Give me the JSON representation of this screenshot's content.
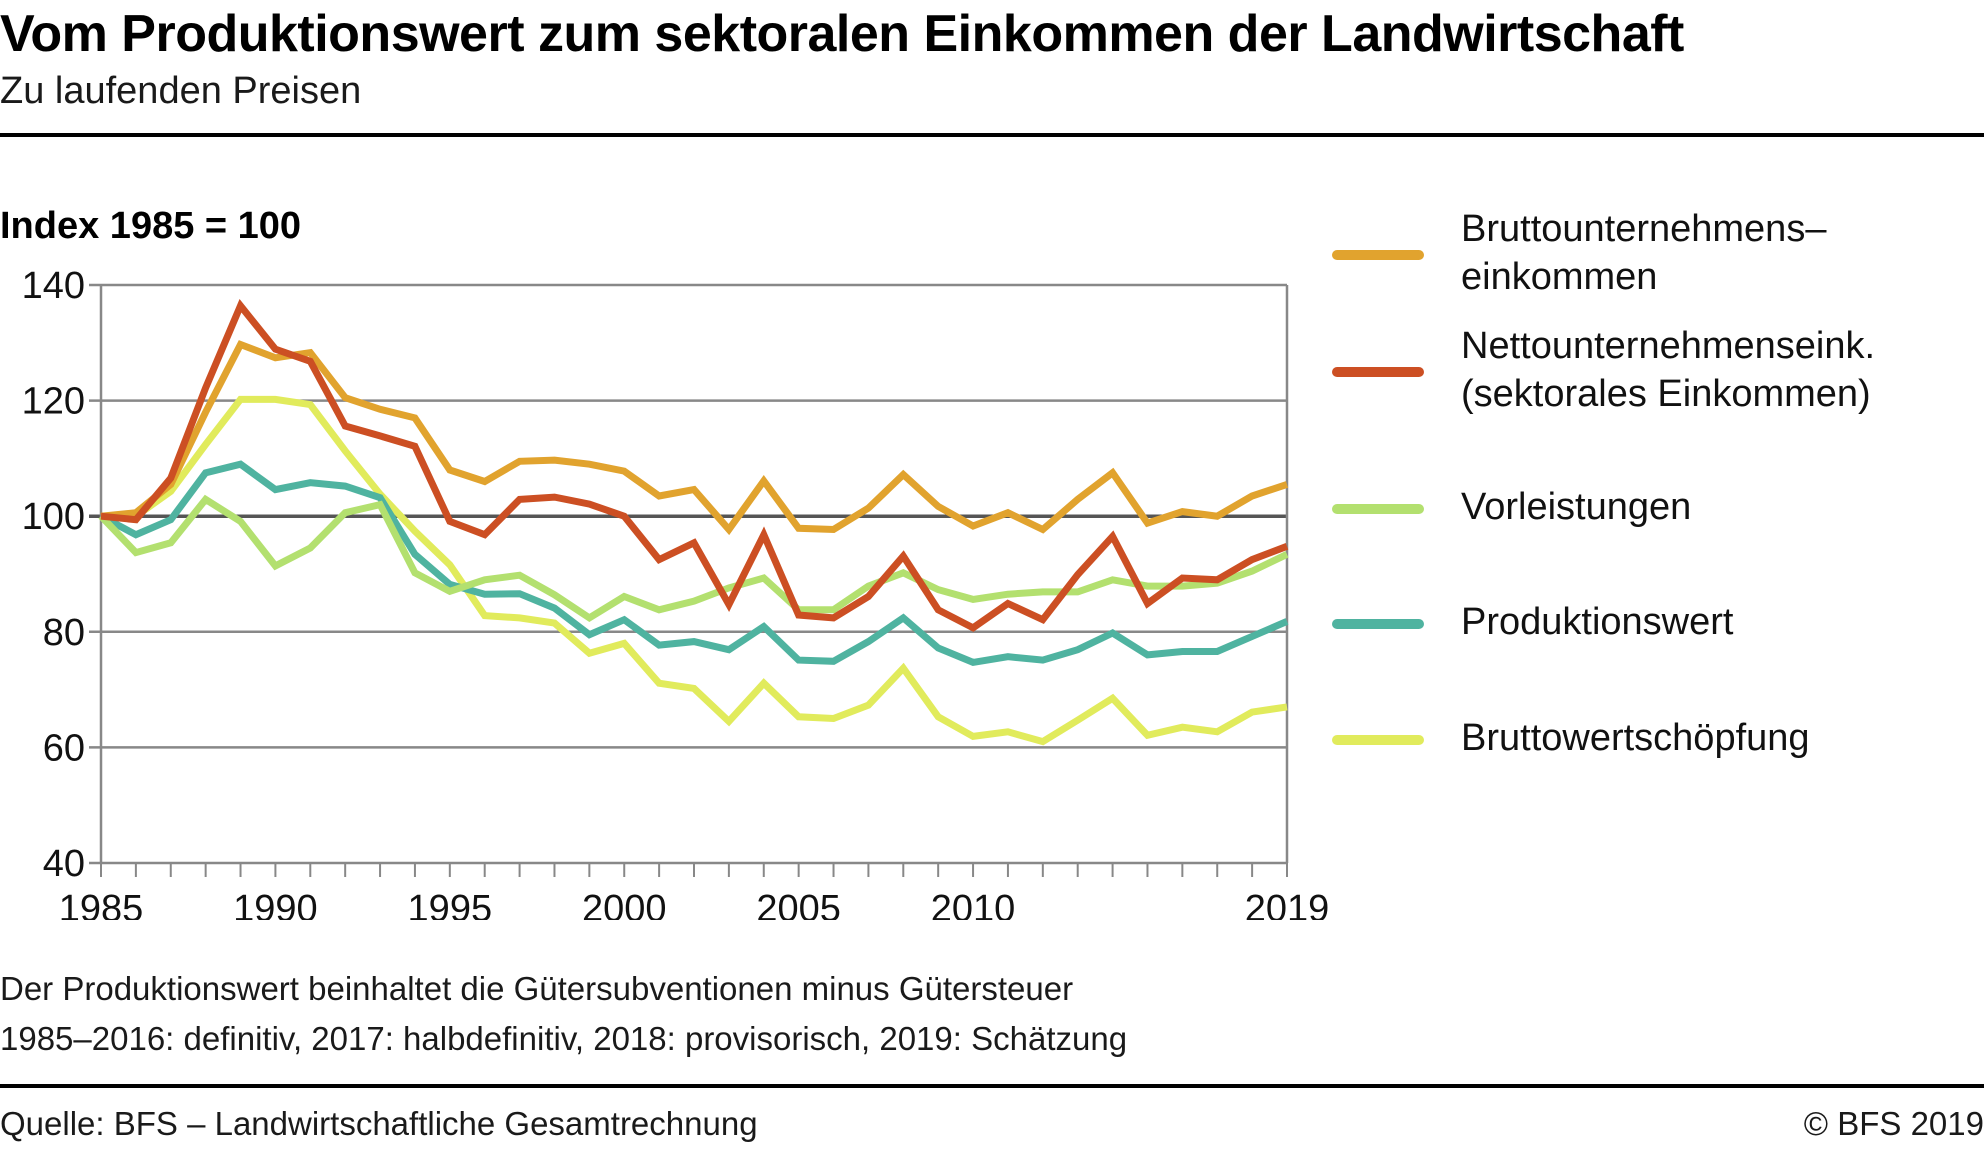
{
  "header": {
    "title": "Vom Produktionswert zum sektoralen Einkommen der Landwirtschaft",
    "subtitle": "Zu laufenden Preisen"
  },
  "footer": {
    "notes": [
      "Der Produktionswert beinhaltet die Gütersubventionen minus Gütersteuer",
      "1985–2016: definitiv, 2017: halbdefinitiv, 2018: provisorisch, 2019: Schätzung"
    ],
    "source": "Quelle: BFS – Landwirtschaftliche Gesamtrechnung",
    "copyright": "© BFS 2019"
  },
  "chart_data": {
    "type": "line",
    "title": "Vom Produktionswert zum sektoralen Einkommen der Landwirtschaft",
    "subtitle": "Zu laufenden Preisen",
    "ylabel": "Index 1985 = 100",
    "xlabel": "",
    "ylim": [
      40,
      140
    ],
    "xlim": [
      1985,
      2019
    ],
    "yticks": [
      40,
      60,
      80,
      100,
      120,
      140
    ],
    "ytick_labels": [
      "40",
      "60",
      "80",
      "100",
      "120",
      "140"
    ],
    "xtick_labels": [
      {
        "year": 1985,
        "label": "1985"
      },
      {
        "year": 1990,
        "label": "1990"
      },
      {
        "year": 1995,
        "label": "1995"
      },
      {
        "year": 2000,
        "label": "2000"
      },
      {
        "year": 2005,
        "label": "2005"
      },
      {
        "year": 2010,
        "label": "2010"
      },
      {
        "year": 2019,
        "label": "2019"
      }
    ],
    "grid": "horizontal",
    "reference_line": 100,
    "legend_position": "right",
    "x": [
      1985,
      1986,
      1987,
      1988,
      1989,
      1990,
      1991,
      1992,
      1993,
      1994,
      1995,
      1996,
      1997,
      1998,
      1999,
      2000,
      2001,
      2002,
      2003,
      2004,
      2005,
      2006,
      2007,
      2008,
      2009,
      2010,
      2011,
      2012,
      2013,
      2014,
      2015,
      2016,
      2017,
      2018,
      2019
    ],
    "series": [
      {
        "name": "Bruttounternehmenseinkommen",
        "legend_lines": [
          "Bruttounternehmens–",
          "einkommen"
        ],
        "color": "#E1A32E",
        "values": [
          100,
          100.6,
          105.5,
          118,
          129.7,
          127.4,
          128.3,
          120.5,
          118.5,
          117,
          108,
          106,
          109.5,
          109.7,
          109,
          107.8,
          103.5,
          104.6,
          97.7,
          106.1,
          97.9,
          97.7,
          101.4,
          107.2,
          101.7,
          98.3,
          100.6,
          97.7,
          102.9,
          107.5,
          98.8,
          100.8,
          100,
          103.5,
          105.5
        ]
      },
      {
        "name": "Nettounternehmenseink. (sektorales Einkommen)",
        "legend_lines": [
          "Nettounternehmenseink.",
          "(sektorales Einkommen)"
        ],
        "color": "#CC4F23",
        "values": [
          100,
          99.4,
          106.6,
          122.2,
          136.4,
          128.9,
          126.8,
          115.6,
          113.9,
          112.1,
          99.1,
          96.8,
          102.9,
          103.3,
          102.1,
          100,
          92.5,
          95.4,
          84.7,
          96.8,
          82.9,
          82.4,
          86.1,
          93.1,
          83.8,
          80.7,
          84.9,
          82.1,
          89.9,
          96.5,
          84.9,
          89.3,
          89,
          92.5,
          94.8
        ]
      },
      {
        "name": "Vorleistungen",
        "legend_lines": [
          "Vorleistungen"
        ],
        "color": "#B3E06F",
        "values": [
          100,
          93.7,
          95.4,
          102.9,
          99.1,
          91.4,
          94.5,
          100.6,
          102,
          90.2,
          87,
          89,
          89.8,
          86.4,
          82.4,
          86.1,
          83.8,
          85.3,
          87.6,
          89.3,
          83.8,
          83.8,
          87.9,
          90.2,
          87.3,
          85.6,
          86.5,
          86.9,
          86.9,
          89,
          87.9,
          87.9,
          88.4,
          90.5,
          93.4
        ]
      },
      {
        "name": "Produktionswert",
        "legend_lines": [
          "Produktionswert"
        ],
        "color": "#4FB3A0",
        "values": [
          100,
          96.8,
          99.4,
          107.5,
          109,
          104.6,
          105.8,
          105.2,
          103.2,
          93.4,
          88.2,
          86.5,
          86.6,
          84.1,
          79.5,
          82.1,
          77.7,
          78.3,
          76.9,
          80.9,
          75.1,
          74.9,
          78.3,
          82.4,
          77.2,
          74.7,
          75.7,
          75.1,
          76.9,
          79.8,
          76,
          76.6,
          76.6,
          79.2,
          81.8
        ]
      },
      {
        "name": "Bruttowertschöpfung",
        "legend_lines": [
          "Bruttowertschöpfung"
        ],
        "color": "#E1EB5C",
        "values": [
          100,
          100,
          104.3,
          112.4,
          120.2,
          120.2,
          119.3,
          111.3,
          103.8,
          97.4,
          91.6,
          82.8,
          82.4,
          81.5,
          76.3,
          78,
          71.1,
          70.2,
          64.5,
          71.1,
          65.3,
          65,
          67.3,
          73.7,
          65.3,
          61.9,
          62.7,
          61,
          64.7,
          68.5,
          62.1,
          63.5,
          62.7,
          66.1,
          67
        ]
      }
    ]
  }
}
